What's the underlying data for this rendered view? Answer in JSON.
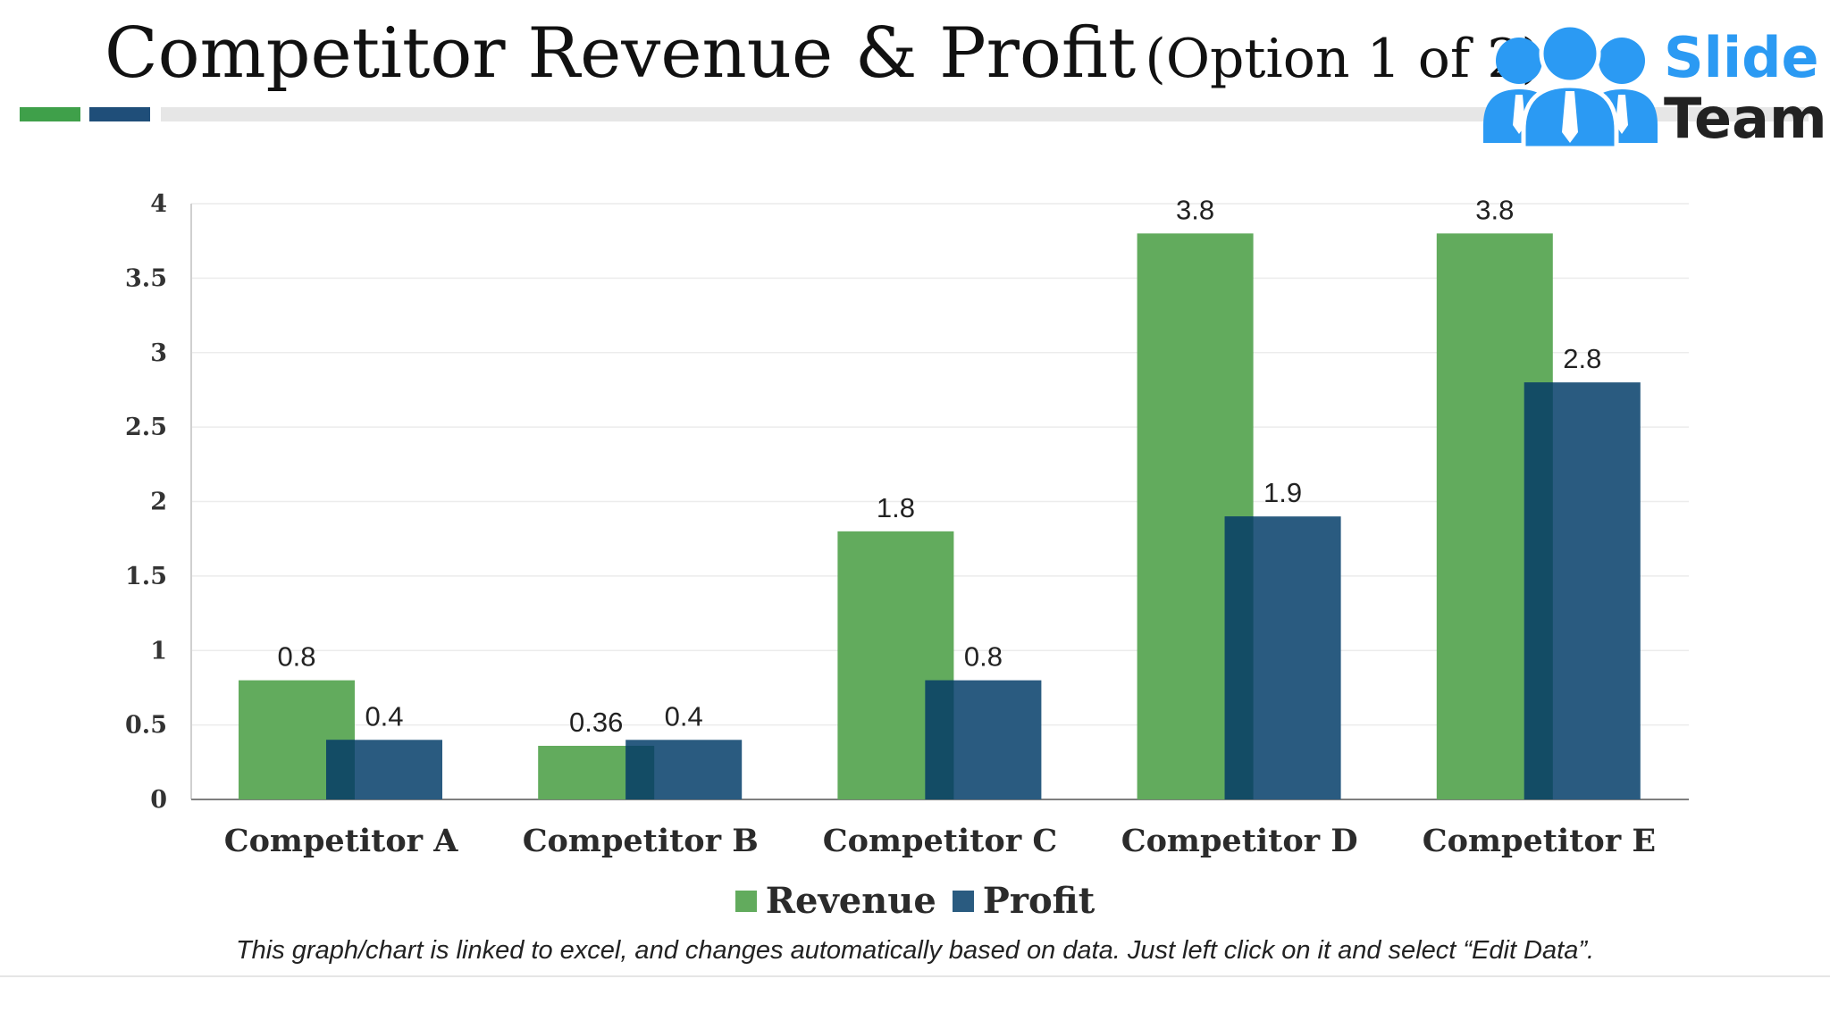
{
  "slide": {
    "title_main": "Competitor Revenue & Profit",
    "title_option": "(Option 1 of 2)",
    "footnote": "This graph/chart is linked to excel, and changes automatically based on data. Just left click on it and select “Edit Data”.",
    "accent_colors": {
      "green": "#3fa04a",
      "blue": "#1f4e79",
      "grey": "#e6e6e6"
    }
  },
  "logo": {
    "line1": "Slide",
    "line2": "Team",
    "icon": "people-group-icon",
    "color": "#2b9af3"
  },
  "chart_data": {
    "type": "bar",
    "categories": [
      "Competitor A",
      "Competitor B",
      "Competitor C",
      "Competitor D",
      "Competitor E"
    ],
    "series": [
      {
        "name": "Revenue",
        "values": [
          0.8,
          0.36,
          1.8,
          3.8,
          3.8
        ],
        "color": "#62ab5d"
      },
      {
        "name": "Profit",
        "values": [
          0.4,
          0.4,
          0.8,
          1.9,
          2.8
        ],
        "color": "#2a5b80"
      }
    ],
    "title": "",
    "xlabel": "",
    "ylabel": "",
    "ylim": [
      0,
      4
    ],
    "yticks": [
      "0",
      "0.5",
      "1",
      "1.5",
      "2",
      "2.5",
      "3",
      "3.5",
      "4"
    ],
    "data_labels": true,
    "overlap_color": "#134c65",
    "grid": true,
    "legend": "bottom"
  }
}
